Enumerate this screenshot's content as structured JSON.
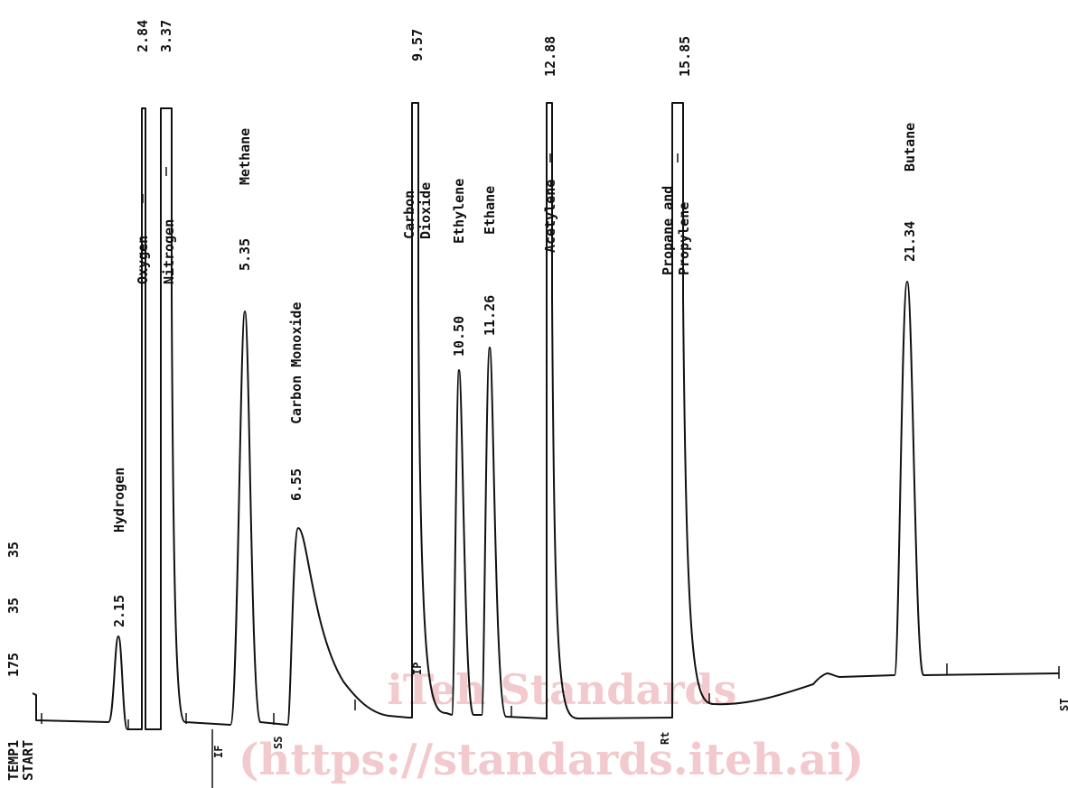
{
  "chart_data": {
    "type": "line",
    "title": "",
    "xlabel": "",
    "ylabel": "",
    "header": {
      "temp_label": "TEMP1",
      "start_label": "START",
      "values": [
        "175",
        "35",
        "35"
      ]
    },
    "end_label": "ST",
    "peaks": [
      {
        "rt": "2.15",
        "name": "Hydrogen",
        "height": 0.1
      },
      {
        "rt": "2.84",
        "name": "Oxygen",
        "height": 1.0
      },
      {
        "rt": "3.37",
        "name": "Nitrogen",
        "height": 1.0
      },
      {
        "rt": "5.35",
        "name": "Methane",
        "height": 0.83
      },
      {
        "rt": "6.55",
        "name": "Carbon Monoxide",
        "height": 0.37
      },
      {
        "rt": "9.57",
        "name": "Carbon Dioxide",
        "height": 1.0
      },
      {
        "rt": "10.50",
        "name": "Ethylene",
        "height": 0.67
      },
      {
        "rt": "11.26",
        "name": "Ethane",
        "height": 0.71
      },
      {
        "rt": "12.88",
        "name": "Acetylene",
        "height": 1.0
      },
      {
        "rt": "15.85",
        "name": "Propane and Propylene",
        "height": 1.0
      },
      {
        "rt": "21.34",
        "name": "Butane",
        "height": 0.89
      }
    ],
    "event_marks": [
      "IF",
      "SS",
      "IP",
      "Rt"
    ]
  },
  "watermark": {
    "line1": "iTeh Standards",
    "line2": "(https://standards.iteh.ai)"
  }
}
